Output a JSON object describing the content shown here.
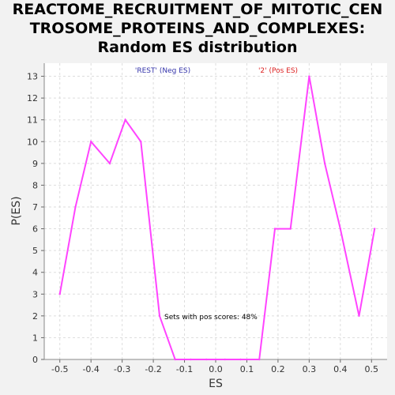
{
  "chart_data": {
    "type": "line",
    "title_lines": [
      "REACTOME_RECRUITMENT_OF_MITOTIC_CEN",
      "TROSOME_PROTEINS_AND_COMPLEXES:",
      "Random ES distribution"
    ],
    "xlabel": "ES",
    "ylabel": "P(ES)",
    "xlim": [
      -0.55,
      0.55
    ],
    "ylim": [
      0,
      13.6
    ],
    "xticks": [
      -0.5,
      -0.4,
      -0.3,
      -0.2,
      -0.1,
      0.0,
      0.1,
      0.2,
      0.3,
      0.4,
      0.5
    ],
    "xtick_labels": [
      "-0.5",
      "-0.4",
      "-0.3",
      "-0.2",
      "-0.1",
      "0.0",
      "0.1",
      "0.2",
      "0.3",
      "0.4",
      "0.5"
    ],
    "yticks": [
      0,
      1,
      2,
      3,
      4,
      5,
      6,
      7,
      8,
      9,
      10,
      11,
      12,
      13
    ],
    "ytick_labels": [
      "0",
      "1",
      "2",
      "3",
      "4",
      "5",
      "6",
      "7",
      "8",
      "9",
      "10",
      "11",
      "12",
      "13"
    ],
    "grid": true,
    "series": [
      {
        "color": "#ff44ff",
        "x": [
          -0.5,
          -0.45,
          -0.4,
          -0.34,
          -0.29,
          -0.24,
          -0.18,
          -0.13,
          -0.08,
          -0.03,
          0.03,
          0.08,
          0.14,
          0.19,
          0.24,
          0.3,
          0.35,
          0.4,
          0.46,
          0.51
        ],
        "y": [
          3,
          7,
          10,
          9,
          11,
          10,
          2,
          0,
          0,
          0,
          0,
          0,
          0,
          6,
          6,
          13,
          9,
          6,
          2,
          6
        ]
      }
    ],
    "annotations": {
      "neg_label": "'REST' (Neg ES)",
      "neg_color": "#3333aa",
      "pos_label": "'2' (Pos ES)",
      "pos_color": "#dd2222",
      "pos_scores_text": "Sets with pos scores: 48%"
    }
  }
}
